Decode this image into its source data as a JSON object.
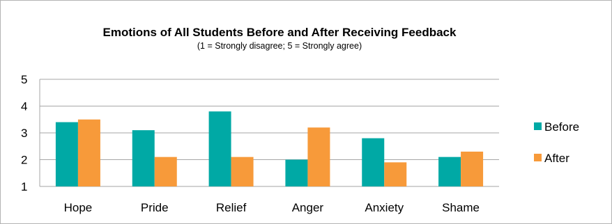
{
  "chart_data": {
    "type": "bar",
    "title": "Emotions of All Students Before and After Receiving Feedback",
    "subtitle": "(1 = Strongly disagree; 5 = Strongly agree)",
    "categories": [
      "Hope",
      "Pride",
      "Relief",
      "Anger",
      "Anxiety",
      "Shame"
    ],
    "series": [
      {
        "name": "Before",
        "color": "#00A9A5",
        "values": [
          3.4,
          3.1,
          3.8,
          2.0,
          2.8,
          2.1
        ]
      },
      {
        "name": "After",
        "color": "#F79A3A",
        "values": [
          3.5,
          2.1,
          2.1,
          3.2,
          1.9,
          2.3
        ]
      }
    ],
    "yticks": [
      "1",
      "2",
      "3",
      "4",
      "5"
    ],
    "ylim": [
      1,
      5
    ],
    "grid": true,
    "legend": "right"
  }
}
